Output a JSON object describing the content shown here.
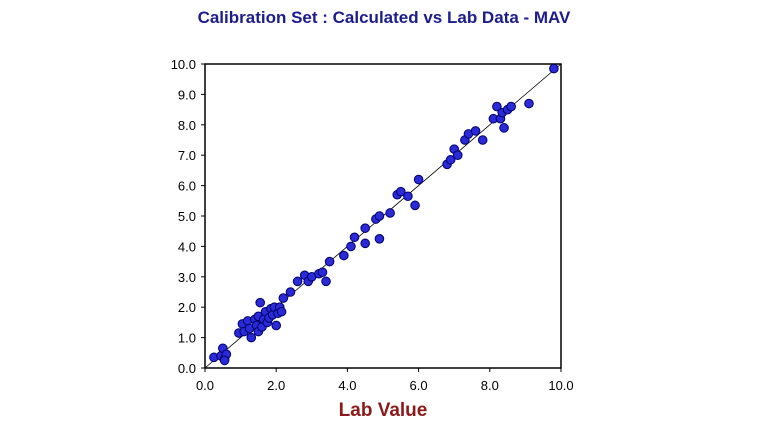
{
  "chart_data": {
    "type": "scatter",
    "title": "Calibration Set : Calculated vs Lab Data - MAV",
    "xlabel": "Lab Value",
    "ylabel": "",
    "xlim": [
      0.0,
      10.0
    ],
    "ylim": [
      0.0,
      10.0
    ],
    "x_ticks": [
      "0.0",
      "2.0",
      "4.0",
      "6.0",
      "8.0",
      "10.0"
    ],
    "y_ticks": [
      "0.0",
      "1.0",
      "2.0",
      "3.0",
      "4.0",
      "5.0",
      "6.0",
      "7.0",
      "8.0",
      "9.0",
      "10.0"
    ],
    "grid": false,
    "reference_line": {
      "from": [
        0.0,
        0.0
      ],
      "to": [
        10.0,
        10.0
      ]
    },
    "marker_color": "#2a2ad8",
    "marker_edge_color": "#000066",
    "series": [
      {
        "points": [
          [
            0.25,
            0.35
          ],
          [
            0.45,
            0.4
          ],
          [
            0.5,
            0.65
          ],
          [
            0.55,
            0.3
          ],
          [
            0.6,
            0.45
          ],
          [
            0.55,
            0.25
          ],
          [
            0.95,
            1.15
          ],
          [
            1.05,
            1.45
          ],
          [
            1.1,
            1.2
          ],
          [
            1.2,
            1.55
          ],
          [
            1.25,
            1.3
          ],
          [
            1.3,
            1.0
          ],
          [
            1.4,
            1.6
          ],
          [
            1.45,
            1.4
          ],
          [
            1.5,
            1.7
          ],
          [
            1.5,
            1.2
          ],
          [
            1.55,
            2.15
          ],
          [
            1.6,
            1.35
          ],
          [
            1.65,
            1.6
          ],
          [
            1.7,
            1.85
          ],
          [
            1.75,
            1.5
          ],
          [
            1.8,
            1.65
          ],
          [
            1.85,
            1.95
          ],
          [
            1.9,
            1.75
          ],
          [
            1.95,
            2.0
          ],
          [
            2.0,
            1.4
          ],
          [
            2.05,
            1.8
          ],
          [
            2.1,
            2.0
          ],
          [
            2.15,
            1.85
          ],
          [
            2.2,
            2.3
          ],
          [
            2.4,
            2.5
          ],
          [
            2.6,
            2.85
          ],
          [
            2.8,
            3.05
          ],
          [
            2.9,
            2.85
          ],
          [
            3.0,
            3.0
          ],
          [
            3.2,
            3.1
          ],
          [
            3.3,
            3.15
          ],
          [
            3.4,
            2.85
          ],
          [
            3.5,
            3.5
          ],
          [
            3.9,
            3.7
          ],
          [
            4.1,
            4.0
          ],
          [
            4.2,
            4.3
          ],
          [
            4.5,
            4.6
          ],
          [
            4.5,
            4.1
          ],
          [
            4.8,
            4.9
          ],
          [
            4.9,
            5.0
          ],
          [
            4.9,
            4.25
          ],
          [
            5.2,
            5.1
          ],
          [
            5.4,
            5.7
          ],
          [
            5.5,
            5.8
          ],
          [
            5.7,
            5.65
          ],
          [
            5.9,
            5.35
          ],
          [
            6.0,
            6.2
          ],
          [
            6.8,
            6.7
          ],
          [
            6.9,
            6.85
          ],
          [
            7.0,
            7.2
          ],
          [
            7.1,
            7.0
          ],
          [
            7.3,
            7.5
          ],
          [
            7.4,
            7.7
          ],
          [
            7.6,
            7.8
          ],
          [
            7.8,
            7.5
          ],
          [
            8.1,
            8.2
          ],
          [
            8.2,
            8.6
          ],
          [
            8.3,
            8.2
          ],
          [
            8.35,
            8.4
          ],
          [
            8.4,
            7.9
          ],
          [
            8.5,
            8.5
          ],
          [
            8.6,
            8.6
          ],
          [
            9.1,
            8.7
          ],
          [
            9.8,
            9.85
          ]
        ]
      }
    ]
  }
}
